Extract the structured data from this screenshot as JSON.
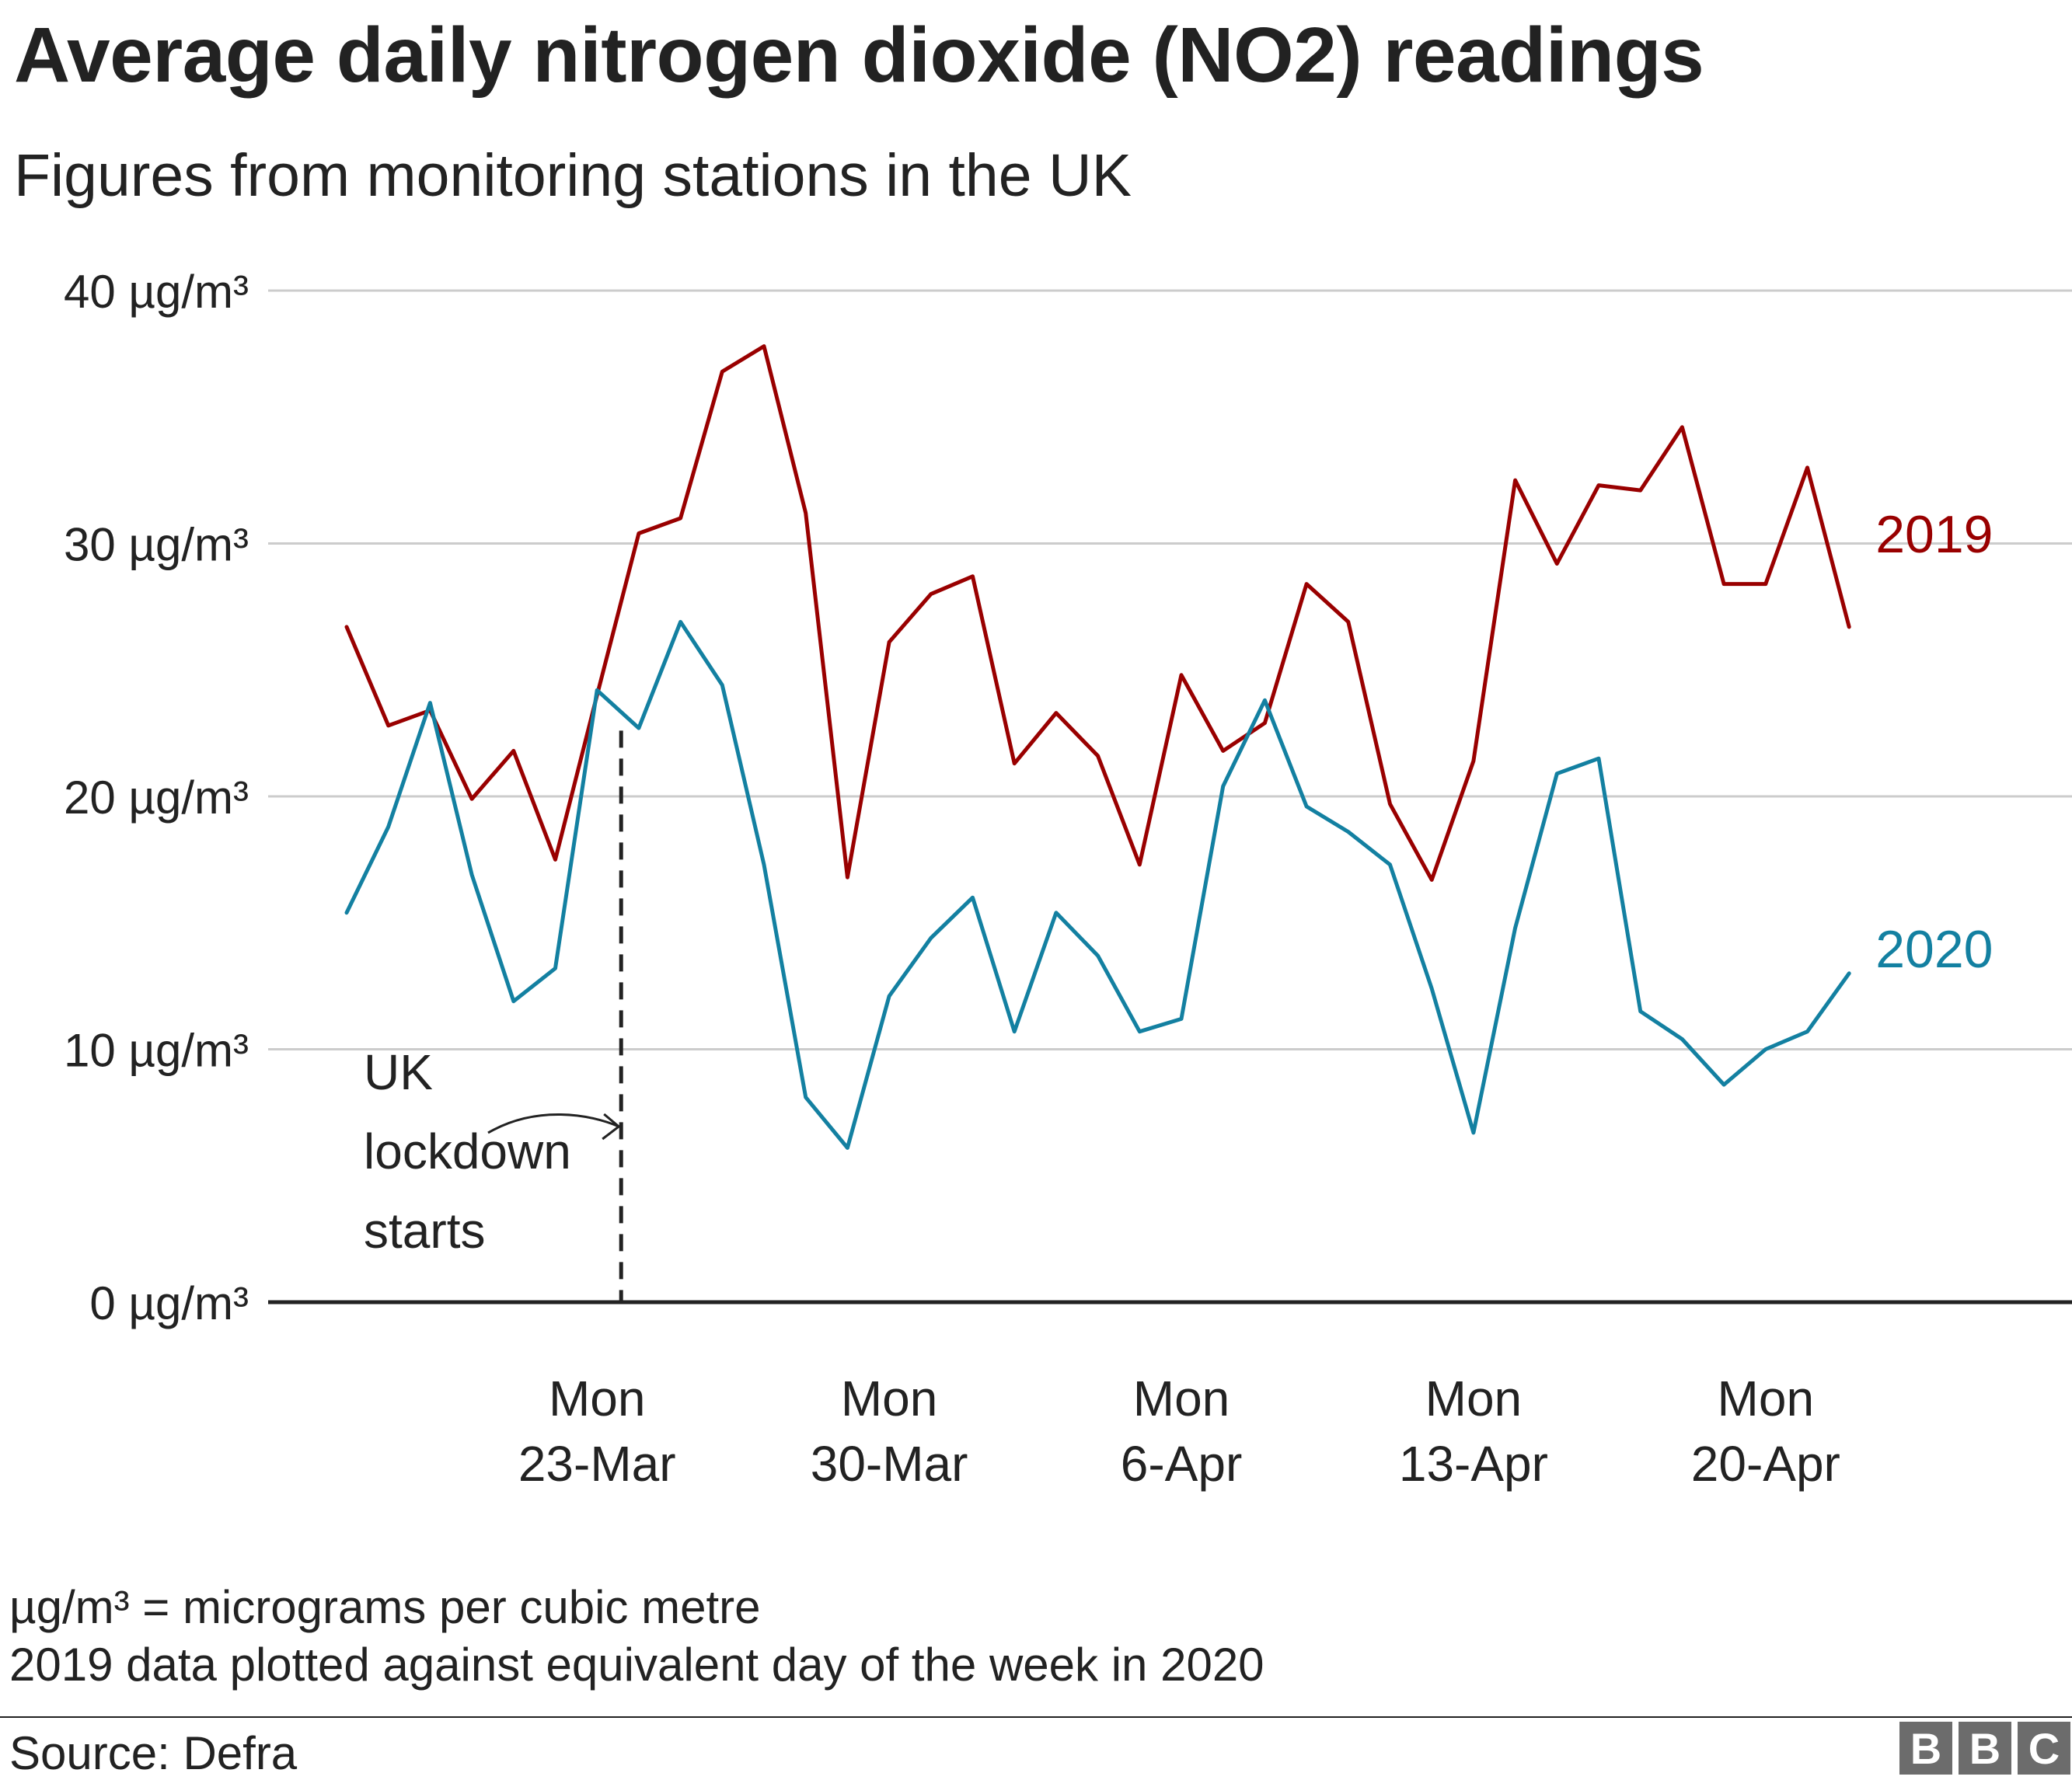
{
  "header": {
    "title": "Average daily nitrogen dioxide (NO2) readings",
    "subtitle": "Figures from monitoring stations in the UK"
  },
  "chart_data": {
    "type": "line",
    "title": "Average daily nitrogen dioxide (NO2) readings",
    "subtitle": "Figures from monitoring stations in the UK",
    "ylim": [
      0,
      40
    ],
    "y_ticks": [
      0,
      10,
      20,
      30,
      40
    ],
    "y_tick_labels": [
      "0 µg/m³",
      "10 µg/m³",
      "20 µg/m³",
      "30 µg/m³",
      "40 µg/m³"
    ],
    "grid": true,
    "x_start": "2020-03-17",
    "x_end": "2020-04-22",
    "x_ticks": [
      {
        "date": "2020-03-23",
        "line1": "Mon",
        "line2": "23-Mar"
      },
      {
        "date": "2020-03-30",
        "line1": "Mon",
        "line2": "30-Mar"
      },
      {
        "date": "2020-04-06",
        "line1": "Mon",
        "line2": "6-Apr"
      },
      {
        "date": "2020-04-13",
        "line1": "Mon",
        "line2": "13-Apr"
      },
      {
        "date": "2020-04-20",
        "line1": "Mon",
        "line2": "20-Apr"
      }
    ],
    "series": [
      {
        "name": "2019",
        "color": "#990000",
        "values": [
          26.7,
          22.8,
          23.4,
          19.9,
          21.8,
          17.5,
          24.0,
          30.4,
          31.0,
          36.8,
          37.8,
          31.2,
          16.8,
          26.1,
          28.0,
          28.7,
          21.3,
          23.3,
          21.6,
          17.3,
          24.8,
          21.8,
          22.9,
          28.4,
          26.9,
          19.7,
          16.7,
          21.4,
          32.5,
          29.2,
          32.3,
          32.1,
          34.6,
          28.4,
          28.4,
          33.0,
          26.7
        ]
      },
      {
        "name": "2020",
        "color": "#1380a1",
        "values": [
          15.4,
          18.8,
          23.7,
          16.9,
          11.9,
          13.2,
          24.2,
          22.7,
          26.9,
          24.4,
          17.3,
          8.1,
          6.1,
          12.1,
          14.4,
          16.0,
          10.7,
          15.4,
          13.7,
          10.7,
          11.2,
          20.4,
          23.8,
          19.6,
          18.6,
          17.3,
          12.4,
          6.7,
          14.8,
          20.9,
          21.5,
          11.5,
          10.4,
          8.6,
          10.0,
          10.7,
          13.0
        ]
      }
    ],
    "annotation": {
      "date": "2020-03-23",
      "lines": [
        "UK",
        "lockdown",
        "starts"
      ]
    }
  },
  "notes": {
    "line1": "µg/m³ = micrograms per cubic metre",
    "line2": "2019 data plotted against equivalent day of the week in 2020"
  },
  "source": "Source: Defra",
  "logo": {
    "letters": [
      "B",
      "B",
      "C"
    ],
    "color": "#6c6c6c"
  }
}
